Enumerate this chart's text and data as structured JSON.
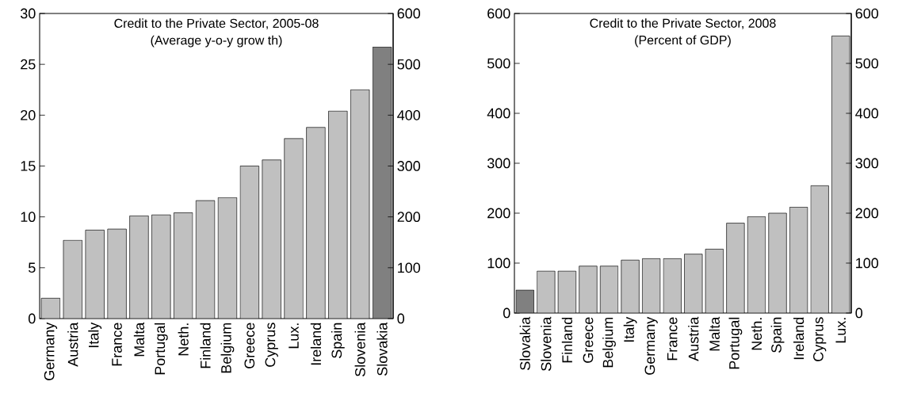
{
  "chart_data": [
    {
      "type": "bar",
      "title": "Credit to the Private Sector, 2005-08",
      "subtitle": "(Average y-o-y grow th)",
      "categories": [
        "Germany",
        "Austria",
        "Italy",
        "France",
        "Malta",
        "Portugal",
        "Neth.",
        "Finland",
        "Belgium",
        "Greece",
        "Cyprus",
        "Lux.",
        "Ireland",
        "Spain",
        "Slovenia",
        "Slovakia"
      ],
      "values": [
        2.0,
        7.7,
        8.7,
        8.8,
        10.1,
        10.2,
        10.4,
        11.6,
        11.9,
        15.0,
        15.6,
        17.7,
        18.8,
        20.4,
        22.5,
        26.7
      ],
      "colors": [
        "#c0c0c0",
        "#c0c0c0",
        "#c0c0c0",
        "#c0c0c0",
        "#c0c0c0",
        "#c0c0c0",
        "#c0c0c0",
        "#c0c0c0",
        "#c0c0c0",
        "#c0c0c0",
        "#c0c0c0",
        "#c0c0c0",
        "#c0c0c0",
        "#c0c0c0",
        "#c0c0c0",
        "#808080"
      ],
      "ylim": [
        0,
        30
      ],
      "yticks": [
        0,
        5,
        10,
        15,
        20,
        25,
        30
      ],
      "y2lim": [
        0,
        600
      ],
      "y2ticks": [
        0,
        100,
        200,
        300,
        400,
        500,
        600
      ]
    },
    {
      "type": "bar",
      "title": "Credit to the Private Sector, 2008",
      "subtitle": "(Percent of GDP)",
      "categories": [
        "Slovakia",
        "Slovenia",
        "Finland",
        "Greece",
        "Belgium",
        "Italy",
        "Germany",
        "France",
        "Austria",
        "Malta",
        "Portugal",
        "Neth.",
        "Spain",
        "Ireland",
        "Cyprus",
        "Lux."
      ],
      "values": [
        46,
        84,
        84,
        94,
        94,
        106,
        109,
        109,
        118,
        128,
        180,
        193,
        200,
        212,
        255,
        555
      ],
      "colors": [
        "#808080",
        "#c0c0c0",
        "#c0c0c0",
        "#c0c0c0",
        "#c0c0c0",
        "#c0c0c0",
        "#c0c0c0",
        "#c0c0c0",
        "#c0c0c0",
        "#c0c0c0",
        "#c0c0c0",
        "#c0c0c0",
        "#c0c0c0",
        "#c0c0c0",
        "#c0c0c0",
        "#c0c0c0"
      ],
      "ylim": [
        0,
        600
      ],
      "yticks": [
        0,
        100,
        200,
        300,
        400,
        500,
        600
      ],
      "y2lim": [
        0,
        600
      ],
      "y2ticks": [
        0,
        100,
        200,
        300,
        400,
        500,
        600
      ]
    }
  ]
}
